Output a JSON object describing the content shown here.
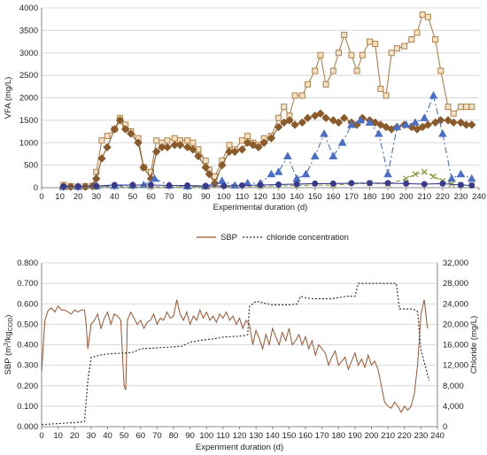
{
  "chart_data": [
    {
      "type": "line",
      "ylabel": "VFA (mg/L)",
      "xlabel": "Experimental duration (d)",
      "xlim": [
        0,
        240
      ],
      "ylim": [
        0,
        4000
      ],
      "xticks": [
        0,
        10,
        20,
        30,
        40,
        50,
        60,
        70,
        80,
        90,
        100,
        110,
        120,
        130,
        140,
        150,
        160,
        170,
        180,
        190,
        200,
        210,
        220,
        230,
        240
      ],
      "yticks": [
        0,
        500,
        1000,
        1500,
        2000,
        2500,
        3000,
        3500,
        4000
      ],
      "grid": "horizontal",
      "series": [
        {
          "color": "#b0804a",
          "marker": "square",
          "dash": "solid",
          "x": [
            12,
            16,
            20,
            24,
            28,
            30,
            33,
            36,
            40,
            43,
            46,
            49,
            53,
            56,
            60,
            63,
            66,
            69,
            73,
            76,
            80,
            83,
            86,
            90,
            92,
            95,
            99,
            103,
            106,
            110,
            113,
            116,
            119,
            122,
            126,
            130,
            133,
            136,
            139,
            143,
            146,
            150,
            153,
            156,
            160,
            163,
            166,
            170,
            173,
            176,
            180,
            183,
            186,
            189,
            192,
            195,
            199,
            203,
            206,
            209,
            212,
            216,
            219,
            223,
            226,
            230,
            233,
            236
          ],
          "y": [
            60,
            30,
            20,
            30,
            40,
            350,
            1050,
            1150,
            1300,
            1550,
            1400,
            1250,
            1100,
            450,
            350,
            1050,
            1000,
            1050,
            1100,
            1050,
            1050,
            1000,
            850,
            600,
            400,
            250,
            600,
            950,
            850,
            1050,
            1150,
            1000,
            950,
            1100,
            1150,
            1550,
            1800,
            1600,
            2050,
            2050,
            2300,
            2600,
            2950,
            2300,
            2600,
            3000,
            3400,
            2950,
            2600,
            2950,
            3250,
            3200,
            2200,
            2050,
            3000,
            3100,
            3150,
            3300,
            3450,
            3850,
            3800,
            3300,
            2600,
            1800,
            1650,
            1800,
            1800,
            1800
          ]
        },
        {
          "color": "#8b5a2b",
          "marker": "diamond",
          "dash": "solid",
          "x": [
            12,
            16,
            20,
            24,
            28,
            30,
            33,
            36,
            40,
            43,
            46,
            49,
            53,
            56,
            60,
            63,
            66,
            69,
            73,
            76,
            80,
            83,
            86,
            90,
            92,
            95,
            99,
            103,
            106,
            110,
            113,
            116,
            119,
            122,
            126,
            130,
            133,
            136,
            139,
            143,
            146,
            150,
            153,
            156,
            160,
            163,
            166,
            170,
            173,
            176,
            180,
            183,
            186,
            189,
            192,
            195,
            199,
            203,
            206,
            209,
            212,
            216,
            219,
            223,
            226,
            230,
            233,
            236
          ],
          "y": [
            20,
            20,
            20,
            20,
            30,
            200,
            650,
            900,
            1300,
            1500,
            1300,
            1200,
            1000,
            450,
            200,
            800,
            900,
            900,
            950,
            950,
            900,
            850,
            700,
            450,
            300,
            100,
            500,
            800,
            800,
            850,
            1000,
            950,
            900,
            1000,
            1100,
            1350,
            1450,
            1500,
            1400,
            1450,
            1550,
            1600,
            1650,
            1550,
            1500,
            1450,
            1550,
            1450,
            1400,
            1550,
            1500,
            1450,
            1400,
            1350,
            1300,
            1350,
            1400,
            1350,
            1300,
            1350,
            1400,
            1450,
            1500,
            1500,
            1450,
            1450,
            1400,
            1400
          ]
        },
        {
          "color": "#4a6fc8",
          "marker": "triangle",
          "dash": "dashdot",
          "x": [
            12,
            20,
            30,
            40,
            50,
            56,
            62,
            70,
            80,
            90,
            99,
            106,
            113,
            120,
            126,
            130,
            135,
            140,
            145,
            150,
            155,
            160,
            165,
            170,
            175,
            180,
            185,
            190,
            195,
            200,
            205,
            210,
            215,
            220,
            225,
            230,
            236
          ],
          "y": [
            20,
            20,
            30,
            40,
            50,
            60,
            200,
            50,
            30,
            30,
            150,
            50,
            100,
            100,
            300,
            350,
            700,
            200,
            300,
            700,
            1200,
            700,
            1000,
            1400,
            1500,
            1450,
            1200,
            300,
            1350,
            1400,
            1450,
            1550,
            2050,
            1200,
            200,
            300,
            200
          ]
        },
        {
          "color": "#8a9a40",
          "marker": "x",
          "dash": "dashed",
          "x": [
            12,
            30,
            60,
            90,
            120,
            140,
            160,
            180,
            190,
            200,
            205,
            210,
            215,
            220,
            225,
            230,
            236
          ],
          "y": [
            10,
            20,
            20,
            20,
            30,
            50,
            60,
            100,
            80,
            200,
            300,
            350,
            250,
            150,
            80,
            60,
            50
          ]
        },
        {
          "color": "#3a3a8c",
          "marker": "circle",
          "dash": "solid",
          "x": [
            12,
            20,
            30,
            40,
            50,
            60,
            70,
            80,
            90,
            100,
            110,
            120,
            130,
            140,
            150,
            160,
            170,
            180,
            190,
            200,
            210,
            220,
            230,
            236
          ],
          "y": [
            30,
            30,
            40,
            60,
            60,
            60,
            50,
            50,
            40,
            40,
            50,
            60,
            70,
            80,
            90,
            90,
            100,
            100,
            100,
            90,
            80,
            90,
            60,
            50
          ]
        }
      ]
    },
    {
      "type": "line",
      "xlabel": "Experiment duration (d)",
      "ylabel": "SBP (m³/kg COD)",
      "y2label": "Chloride (mg/L)",
      "xlim": [
        0,
        240
      ],
      "ylim": [
        0,
        0.8
      ],
      "y2lim": [
        0,
        32000
      ],
      "xticks": [
        0,
        10,
        20,
        30,
        40,
        50,
        60,
        70,
        80,
        90,
        100,
        110,
        120,
        130,
        140,
        150,
        160,
        170,
        180,
        190,
        200,
        210,
        220,
        230,
        240
      ],
      "yticks": [
        "0.000",
        "0.100",
        "0.200",
        "0.300",
        "0.400",
        "0.500",
        "0.600",
        "0.700",
        "0.800"
      ],
      "y2ticks": [
        "0",
        "4,000",
        "8,000",
        "12,000",
        "16,000",
        "20,000",
        "24,000",
        "28,000",
        "32,000"
      ],
      "grid": "horizontal",
      "legend": "top-center",
      "series": [
        {
          "name": "SBP",
          "axis": "left",
          "color": "#a0522d",
          "dash": "solid",
          "x": [
            0,
            2,
            4,
            6,
            8,
            10,
            12,
            14,
            16,
            18,
            20,
            22,
            24,
            26,
            27,
            28,
            30,
            32,
            34,
            36,
            38,
            40,
            42,
            44,
            46,
            48,
            50,
            51,
            52,
            54,
            56,
            58,
            60,
            62,
            64,
            66,
            68,
            70,
            72,
            74,
            76,
            78,
            80,
            82,
            84,
            86,
            88,
            90,
            92,
            94,
            96,
            98,
            100,
            102,
            104,
            106,
            108,
            110,
            112,
            114,
            116,
            118,
            120,
            122,
            124,
            126,
            128,
            130,
            132,
            134,
            136,
            138,
            140,
            142,
            144,
            146,
            148,
            150,
            152,
            154,
            156,
            158,
            160,
            162,
            164,
            166,
            168,
            170,
            172,
            174,
            176,
            178,
            180,
            182,
            184,
            186,
            188,
            190,
            192,
            194,
            196,
            198,
            200,
            202,
            204,
            206,
            208,
            210,
            212,
            214,
            216,
            218,
            220,
            222,
            224,
            226,
            228,
            230,
            232,
            234
          ],
          "y": [
            0.27,
            0.52,
            0.57,
            0.58,
            0.56,
            0.59,
            0.57,
            0.57,
            0.56,
            0.55,
            0.57,
            0.56,
            0.57,
            0.57,
            0.5,
            0.38,
            0.5,
            0.52,
            0.55,
            0.48,
            0.53,
            0.56,
            0.5,
            0.55,
            0.54,
            0.52,
            0.2,
            0.18,
            0.52,
            0.56,
            0.53,
            0.5,
            0.52,
            0.48,
            0.51,
            0.52,
            0.55,
            0.5,
            0.53,
            0.52,
            0.56,
            0.53,
            0.54,
            0.62,
            0.55,
            0.52,
            0.56,
            0.5,
            0.54,
            0.52,
            0.57,
            0.53,
            0.56,
            0.52,
            0.54,
            0.51,
            0.55,
            0.53,
            0.56,
            0.52,
            0.54,
            0.5,
            0.53,
            0.48,
            0.52,
            0.5,
            0.4,
            0.47,
            0.43,
            0.38,
            0.45,
            0.4,
            0.48,
            0.44,
            0.4,
            0.46,
            0.42,
            0.48,
            0.4,
            0.42,
            0.45,
            0.4,
            0.44,
            0.38,
            0.42,
            0.35,
            0.4,
            0.38,
            0.36,
            0.3,
            0.34,
            0.37,
            0.3,
            0.32,
            0.34,
            0.28,
            0.32,
            0.36,
            0.3,
            0.33,
            0.29,
            0.35,
            0.3,
            0.32,
            0.28,
            0.2,
            0.12,
            0.1,
            0.09,
            0.12,
            0.1,
            0.07,
            0.1,
            0.08,
            0.1,
            0.16,
            0.3,
            0.55,
            0.62,
            0.48
          ]
        },
        {
          "name": "chloride concentration",
          "axis": "right",
          "color": "#333333",
          "dash": "dotted",
          "x": [
            0,
            10,
            20,
            26,
            28,
            30,
            35,
            40,
            45,
            50,
            55,
            60,
            65,
            70,
            75,
            80,
            85,
            90,
            95,
            100,
            105,
            110,
            115,
            120,
            123,
            125,
            126,
            130,
            140,
            150,
            155,
            157,
            160,
            165,
            170,
            175,
            180,
            185,
            190,
            192,
            195,
            200,
            205,
            210,
            215,
            217,
            220,
            225,
            228,
            230,
            235
          ],
          "y": [
            400,
            600,
            800,
            1000,
            9000,
            13500,
            14000,
            14200,
            14300,
            14400,
            14500,
            15200,
            15300,
            15400,
            15500,
            15600,
            15700,
            16500,
            16800,
            17000,
            17200,
            17500,
            17600,
            17700,
            17800,
            18000,
            23500,
            24500,
            23800,
            23800,
            24000,
            25500,
            25200,
            25000,
            25000,
            25000,
            25200,
            25500,
            25500,
            28000,
            28000,
            28000,
            28000,
            28000,
            28000,
            23000,
            23000,
            23000,
            22500,
            15000,
            9000
          ]
        }
      ]
    }
  ],
  "bottom_axis_labels": {
    "ylabel_prefix": "SBP (m",
    "ylabel_sup": "3",
    "ylabel_mid": "/kg",
    "ylabel_sub": "COD",
    "ylabel_suffix": ")"
  }
}
